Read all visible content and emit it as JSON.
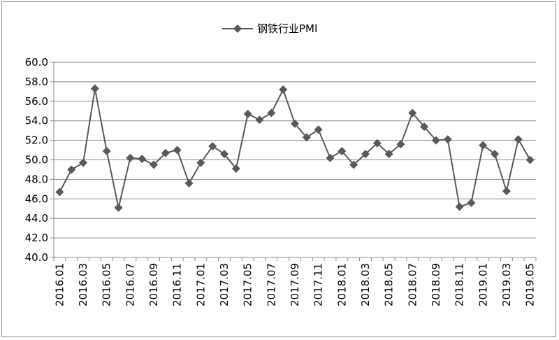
{
  "chart_data": {
    "type": "line",
    "title": "",
    "xlabel": "",
    "ylabel": "",
    "ylim": [
      40,
      60
    ],
    "yticks": [
      "40.0",
      "42.0",
      "44.0",
      "46.0",
      "48.0",
      "50.0",
      "52.0",
      "54.0",
      "56.0",
      "58.0",
      "60.0"
    ],
    "grid": true,
    "legend_position": "top-center",
    "x": [
      "2016.01",
      "2016.02",
      "2016.03",
      "2016.04",
      "2016.05",
      "2016.06",
      "2016.07",
      "2016.08",
      "2016.09",
      "2016.10",
      "2016.11",
      "2016.12",
      "2017.01",
      "2017.02",
      "2017.03",
      "2017.04",
      "2017.05",
      "2017.06",
      "2017.07",
      "2017.08",
      "2017.09",
      "2017.10",
      "2017.11",
      "2017.12",
      "2018.01",
      "2018.02",
      "2018.03",
      "2018.04",
      "2018.05",
      "2018.06",
      "2018.07",
      "2018.08",
      "2018.09",
      "2018.10",
      "2018.11",
      "2018.12",
      "2019.01",
      "2019.02",
      "2019.03",
      "2019.04",
      "2019.05"
    ],
    "xtick_labels": [
      "2016.01",
      "2016.03",
      "2016.05",
      "2016.07",
      "2016.09",
      "2016.11",
      "2017.01",
      "2017.03",
      "2017.05",
      "2017.07",
      "2017.09",
      "2017.11",
      "2018.01",
      "2018.03",
      "2018.05",
      "2018.07",
      "2018.09",
      "2018.11",
      "2019.01",
      "2019.03",
      "2019.05"
    ],
    "series": [
      {
        "name": "钢铁行业PMI",
        "color": "#595959",
        "marker": "diamond",
        "values": [
          46.7,
          49.0,
          49.7,
          57.3,
          50.9,
          45.1,
          50.2,
          50.1,
          49.5,
          50.7,
          51.0,
          47.6,
          49.7,
          51.4,
          50.6,
          49.1,
          54.7,
          54.1,
          54.8,
          57.2,
          53.7,
          52.3,
          53.1,
          50.2,
          50.9,
          49.5,
          50.6,
          51.7,
          50.6,
          51.6,
          54.8,
          53.4,
          52.0,
          52.1,
          45.2,
          45.6,
          51.5,
          50.6,
          46.8,
          52.1,
          50.0
        ]
      }
    ]
  }
}
